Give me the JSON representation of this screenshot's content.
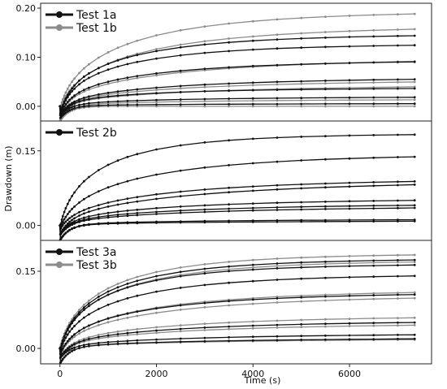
{
  "colors": {
    "black": "#111111",
    "gray": "#8c8c8c"
  },
  "chart_data": {
    "type": "line",
    "xlabel": "Time (s)",
    "ylabel": "Drawdown (m)",
    "xlim": [
      -400,
      7700
    ],
    "xticks": [
      0,
      2000,
      4000,
      6000
    ],
    "xtick_labels": [
      "0",
      "2000",
      "4000",
      "6000"
    ],
    "grid": false,
    "panels": [
      {
        "id": "panel1",
        "ylim": [
          -0.03,
          0.21
        ],
        "yticks": [
          0.0,
          0.1,
          0.2
        ],
        "ytick_labels": [
          "0.00",
          "0.10",
          "0.20"
        ],
        "legend": {
          "placement": "top-left",
          "entries": [
            {
              "label": "Test 1a",
              "color": "black"
            },
            {
              "label": "Test 1b",
              "color": "gray"
            }
          ]
        },
        "series": [
          {
            "group": "black",
            "final": 0.148,
            "tau": 1200,
            "start": -0.02
          },
          {
            "group": "black",
            "final": 0.128,
            "tau": 1200,
            "start": -0.02
          },
          {
            "group": "black",
            "final": 0.095,
            "tau": 1500,
            "start": -0.02
          },
          {
            "group": "black",
            "final": 0.06,
            "tau": 2000,
            "start": -0.02
          },
          {
            "group": "black",
            "final": 0.038,
            "tau": 1500,
            "start": -0.02
          },
          {
            "group": "black",
            "final": 0.02,
            "tau": 2000,
            "start": -0.02
          },
          {
            "group": "black",
            "final": 0.006,
            "tau": 2500,
            "start": -0.025
          },
          {
            "group": "gray",
            "final": 0.195,
            "tau": 1300,
            "start": -0.01
          },
          {
            "group": "gray",
            "final": 0.165,
            "tau": 1500,
            "start": -0.01
          },
          {
            "group": "gray",
            "final": 0.1,
            "tau": 2000,
            "start": -0.02
          },
          {
            "group": "gray",
            "final": 0.055,
            "tau": 2200,
            "start": -0.02
          },
          {
            "group": "gray",
            "final": 0.045,
            "tau": 2500,
            "start": -0.02
          },
          {
            "group": "gray",
            "final": 0.015,
            "tau": 2500,
            "start": -0.03
          },
          {
            "group": "gray",
            "final": 0.0,
            "tau": 3000,
            "start": -0.03
          }
        ]
      },
      {
        "id": "panel2",
        "ylim": [
          -0.03,
          0.21
        ],
        "yticks": [
          0.0,
          0.15
        ],
        "ytick_labels": [
          "0.00",
          "0.15"
        ],
        "legend": {
          "placement": "top-left",
          "entries": [
            {
              "label": "Test 2b",
              "color": "black"
            }
          ]
        },
        "series": [
          {
            "group": "black",
            "final": 0.185,
            "tau": 900,
            "start": -0.01
          },
          {
            "group": "black",
            "final": 0.145,
            "tau": 1500,
            "start": -0.01
          },
          {
            "group": "black",
            "final": 0.095,
            "tau": 1800,
            "start": -0.01
          },
          {
            "group": "black",
            "final": 0.093,
            "tau": 2500,
            "start": -0.02
          },
          {
            "group": "black",
            "final": 0.055,
            "tau": 2000,
            "start": -0.02
          },
          {
            "group": "black",
            "final": 0.045,
            "tau": 2200,
            "start": -0.02
          },
          {
            "group": "black",
            "final": 0.04,
            "tau": 2500,
            "start": -0.02
          },
          {
            "group": "black",
            "final": 0.013,
            "tau": 2500,
            "start": -0.03
          },
          {
            "group": "black",
            "final": 0.01,
            "tau": 3000,
            "start": -0.03
          }
        ]
      },
      {
        "id": "panel3",
        "ylim": [
          -0.03,
          0.21
        ],
        "yticks": [
          0.0,
          0.15
        ],
        "ytick_labels": [
          "0.00",
          "0.15"
        ],
        "legend": {
          "placement": "top-left",
          "entries": [
            {
              "label": "Test 3a",
              "color": "black"
            },
            {
              "label": "Test 3b",
              "color": "gray"
            }
          ]
        },
        "series": [
          {
            "group": "black",
            "final": 0.175,
            "tau": 1000,
            "start": -0.01
          },
          {
            "group": "black",
            "final": 0.165,
            "tau": 1000,
            "start": -0.01
          },
          {
            "group": "black",
            "final": 0.145,
            "tau": 1200,
            "start": -0.01
          },
          {
            "group": "black",
            "final": 0.11,
            "tau": 1500,
            "start": -0.015
          },
          {
            "group": "black",
            "final": 0.055,
            "tau": 2000,
            "start": -0.02
          },
          {
            "group": "black",
            "final": 0.03,
            "tau": 2500,
            "start": -0.02
          },
          {
            "group": "black",
            "final": 0.022,
            "tau": 3000,
            "start": -0.03
          },
          {
            "group": "gray",
            "final": 0.185,
            "tau": 1000,
            "start": -0.005
          },
          {
            "group": "gray",
            "final": 0.172,
            "tau": 1100,
            "start": -0.005
          },
          {
            "group": "gray",
            "final": 0.115,
            "tau": 1600,
            "start": -0.015
          },
          {
            "group": "gray",
            "final": 0.105,
            "tau": 1800,
            "start": -0.015
          },
          {
            "group": "gray",
            "final": 0.065,
            "tau": 2000,
            "start": -0.02
          },
          {
            "group": "gray",
            "final": 0.05,
            "tau": 2200,
            "start": -0.02
          },
          {
            "group": "gray",
            "final": 0.02,
            "tau": 3000,
            "start": -0.03
          }
        ]
      }
    ]
  }
}
